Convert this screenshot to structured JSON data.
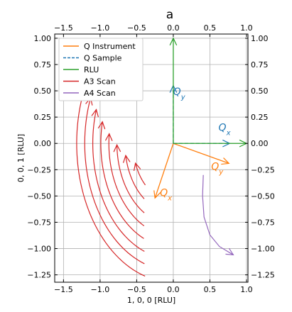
{
  "chart_data": {
    "type": "line",
    "title": "a",
    "xlabel": "1, 0, 0 [RLU]",
    "ylabel": "0, 0, 1 [RLU]",
    "xlim": [
      -1.62,
      1.02
    ],
    "ylim": [
      -1.32,
      1.04
    ],
    "grid": true,
    "legend_position": "top-left",
    "x_ticks": [
      -1.5,
      -1.0,
      -0.5,
      0.0,
      0.5,
      1.0
    ],
    "x_tick_labels": [
      "−1.5",
      "−1.0",
      "−0.5",
      "0.0",
      "0.5",
      "1.0"
    ],
    "top_x_tick_labels": [
      "−1.5",
      "−1.0",
      "−0.5",
      "0.0",
      "0.5",
      "1.0"
    ],
    "y_ticks": [
      1.0,
      0.75,
      0.5,
      0.25,
      0.0,
      -0.25,
      -0.5,
      -0.75,
      -1.0,
      -1.25
    ],
    "y_tick_labels": [
      "1.00",
      "0.75",
      "0.50",
      "0.25",
      "0.00",
      "−0.25",
      "−0.50",
      "−0.75",
      "−1.00",
      "−1.25"
    ],
    "right_y_tick_labels": [
      "1.00",
      "0.75",
      "0.50",
      "0.25",
      "0.00",
      "−0.25",
      "−0.50",
      "−0.75",
      "−1.00",
      "−1.25"
    ],
    "legend": [
      {
        "label": "Q Instrument",
        "color": "#ff7f0e",
        "style": "solid"
      },
      {
        "label": "Q Sample",
        "color": "#1f77b4",
        "style": "dashed"
      },
      {
        "label": "RLU",
        "color": "#2ca02c",
        "style": "solid"
      },
      {
        "label": "A3 Scan",
        "color": "#d62728",
        "style": "solid"
      },
      {
        "label": "A4 Scan",
        "color": "#9467bd",
        "style": "solid"
      }
    ],
    "vectors": [
      {
        "series": "Q Instrument",
        "label": "Q_x",
        "from": [
          0,
          0
        ],
        "to": [
          -0.25,
          -0.52
        ],
        "color": "#ff7f0e",
        "style": "solid",
        "label_at": [
          -0.1,
          -0.5
        ]
      },
      {
        "series": "Q Instrument",
        "label": "Q_y",
        "from": [
          0,
          0
        ],
        "to": [
          0.76,
          -0.19
        ],
        "color": "#ff7f0e",
        "style": "solid",
        "label_at": [
          0.6,
          -0.25
        ]
      },
      {
        "series": "Q Sample",
        "label": "Q_x",
        "from": [
          0,
          0
        ],
        "to": [
          0.77,
          0
        ],
        "color": "#1f77b4",
        "style": "dashed",
        "label_at": [
          0.7,
          0.12
        ]
      },
      {
        "series": "Q Sample",
        "label": "Q_y",
        "from": [
          0,
          0
        ],
        "to": [
          0,
          0.55
        ],
        "color": "#1f77b4",
        "style": "dashed",
        "label_at": [
          0.08,
          0.46
        ]
      },
      {
        "series": "RLU",
        "label": "",
        "from": [
          0,
          0
        ],
        "to": [
          1.0,
          0
        ],
        "color": "#2ca02c",
        "style": "solid"
      },
      {
        "series": "RLU",
        "label": "",
        "from": [
          0,
          0
        ],
        "to": [
          0,
          1.0
        ],
        "color": "#2ca02c",
        "style": "solid"
      }
    ],
    "label_symbol": "Q",
    "a3_scan": {
      "color": "#d62728",
      "arcs": [
        {
          "radius": 0.55,
          "start_angle_deg": -44,
          "end_angle_deg": -70
        },
        {
          "radius": 0.66,
          "start_angle_deg": -37,
          "end_angle_deg": -80
        },
        {
          "radius": 0.77,
          "start_angle_deg": -31,
          "end_angle_deg": -89
        },
        {
          "radius": 0.88,
          "start_angle_deg": -27,
          "end_angle_deg": -96
        },
        {
          "radius": 0.99,
          "start_angle_deg": -24,
          "end_angle_deg": -102
        },
        {
          "radius": 1.1,
          "start_angle_deg": -21,
          "end_angle_deg": -107
        },
        {
          "radius": 1.21,
          "start_angle_deg": -19,
          "end_angle_deg": -111
        },
        {
          "radius": 1.32,
          "start_angle_deg": -17,
          "end_angle_deg": -115
        }
      ],
      "end": "A3_end"
    },
    "a4_scan": {
      "color": "#9467bd",
      "points": [
        [
          0.41,
          -0.3
        ],
        [
          0.4,
          -0.5
        ],
        [
          0.42,
          -0.7
        ],
        [
          0.5,
          -0.87
        ],
        [
          0.63,
          -0.98
        ],
        [
          0.82,
          -1.06
        ]
      ],
      "end": "arrow"
    }
  }
}
